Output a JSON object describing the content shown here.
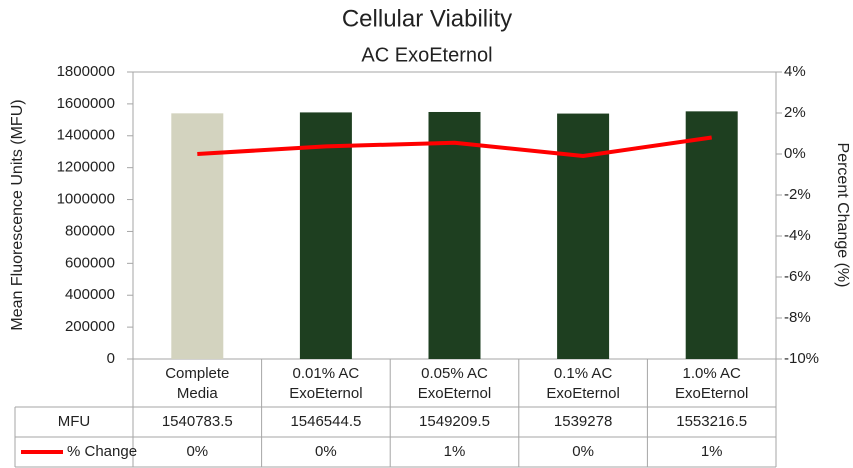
{
  "chart_data": {
    "type": "bar_line_table",
    "title": "Cellular Viability",
    "subtitle": "AC ExoEternol",
    "y_label": "Mean Fluorescence Units (MFU)",
    "y2_label": "Percent Change (%)",
    "categories": [
      "Complete Media",
      "0.01% AC ExoEternol",
      "0.05% AC ExoEternol",
      "0.1% AC ExoEternol",
      "1.0% AC ExoEternol"
    ],
    "series": [
      {
        "name": "MFU",
        "type": "bar",
        "colors": [
          "#d3d3bf",
          "#1e3f20",
          "#1e3f20",
          "#1e3f20",
          "#1e3f20"
        ],
        "values": [
          1540783.5,
          1546544.5,
          1549209.5,
          1539278,
          1553216.5
        ]
      },
      {
        "name": "% Change",
        "type": "line",
        "axis": "y2",
        "color": "#ff0000",
        "values": [
          0,
          0.374,
          0.547,
          -0.098,
          0.806
        ],
        "value_labels": [
          "0%",
          "0%",
          "1%",
          "0%",
          "1%"
        ]
      }
    ],
    "ylim": [
      0,
      1800000
    ],
    "yticks": [
      0,
      200000,
      400000,
      600000,
      800000,
      1000000,
      1200000,
      1400000,
      1600000,
      1800000
    ],
    "y2lim": [
      -10,
      4
    ],
    "y2ticks": [
      {
        "value": -10,
        "label": "-10%"
      },
      {
        "value": -8,
        "label": "-8%"
      },
      {
        "value": -6,
        "label": "-6%"
      },
      {
        "value": -4,
        "label": "-4%"
      },
      {
        "value": -2,
        "label": "-2%"
      },
      {
        "value": 0,
        "label": "0%"
      },
      {
        "value": 2,
        "label": "2%"
      },
      {
        "value": 4,
        "label": "4%"
      }
    ],
    "data_table": true
  }
}
